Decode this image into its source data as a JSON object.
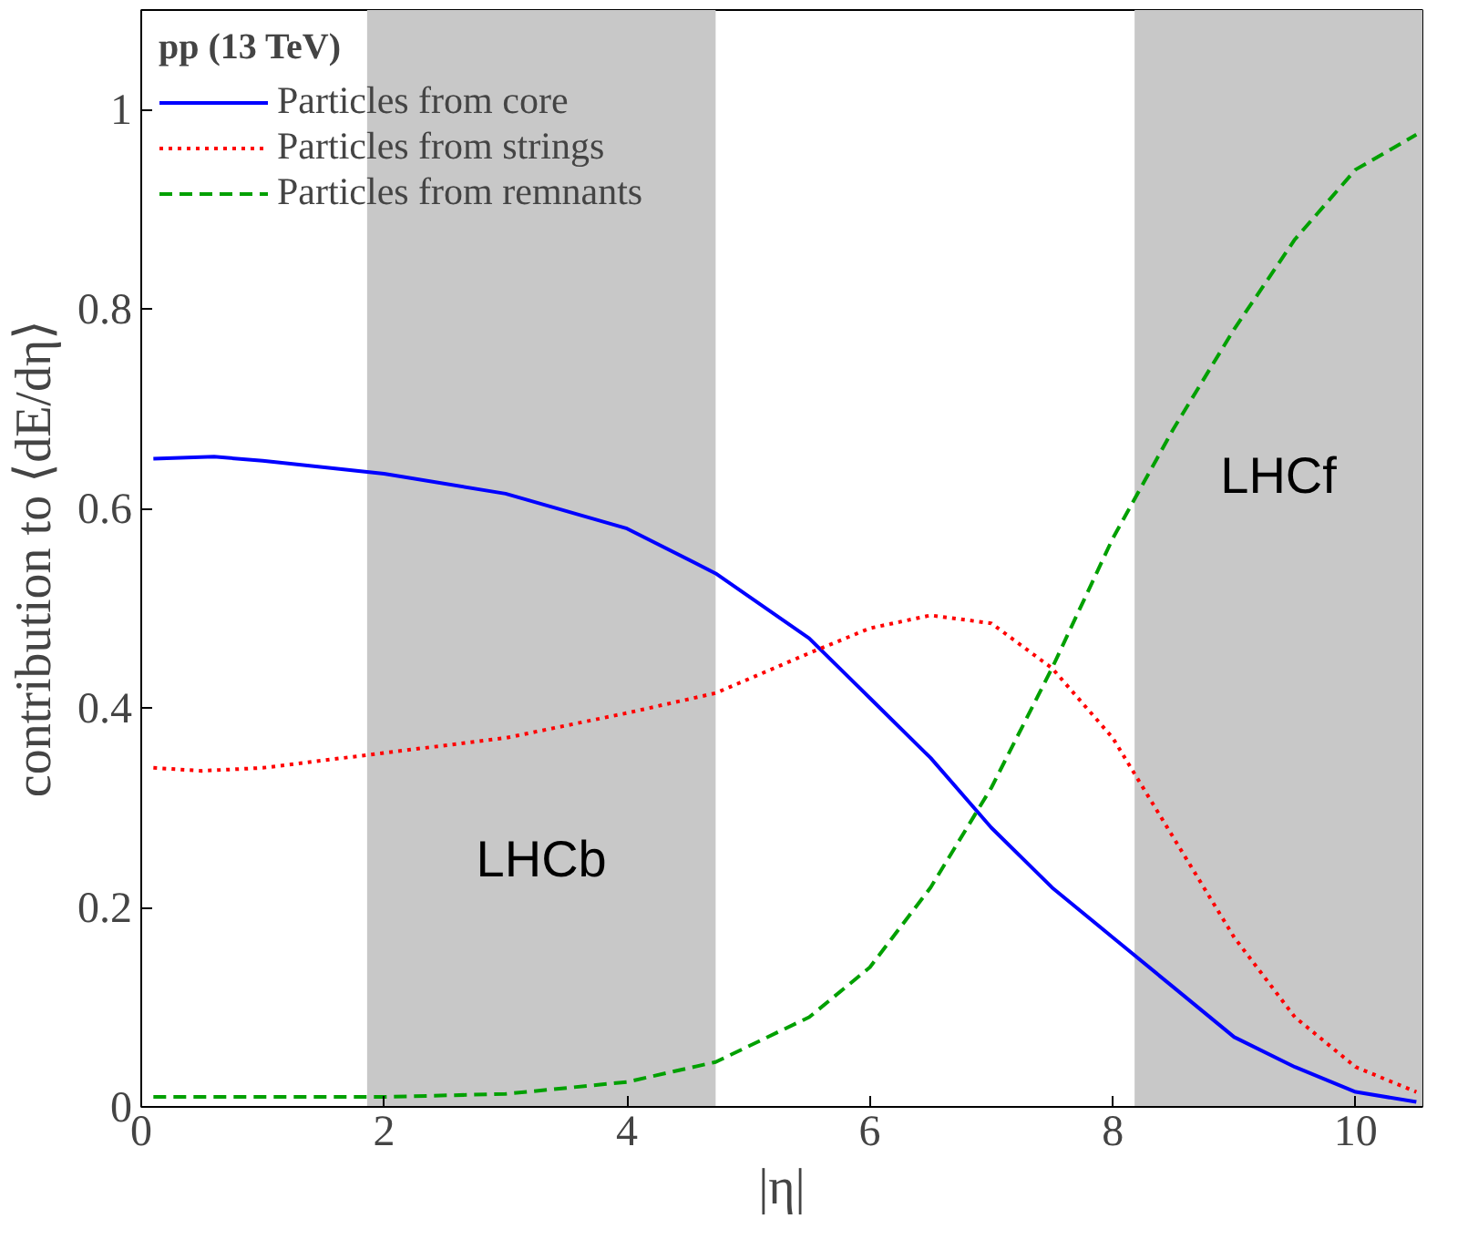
{
  "chart_data": {
    "type": "line",
    "xlabel": "|η|",
    "ylabel": "contribution to ⟨dE/dη⟩",
    "legend_title": "pp (13 TeV)",
    "legend": "top left",
    "grid": false,
    "xlim": [
      0,
      10.55
    ],
    "ylim": [
      0,
      1.1
    ],
    "xticks": [
      0,
      2,
      4,
      6,
      8,
      10
    ],
    "yticks": [
      0,
      0.2,
      0.4,
      0.6,
      0.8,
      1
    ],
    "bands": [
      {
        "axis": "x",
        "from": 1.86,
        "to": 4.73,
        "label": "LHCb",
        "color": "#c8c8c8"
      },
      {
        "axis": "x",
        "from": 8.18,
        "to": 10.55,
        "label": "LHCf",
        "color": "#c8c8c8"
      }
    ],
    "series": [
      {
        "name": "Particles from core",
        "color": "#0000ff",
        "line_style": "solid",
        "x": [
          0.1,
          0.6,
          1,
          2,
          3,
          4,
          4.73,
          5.5,
          6,
          6.5,
          7,
          7.5,
          8,
          8.5,
          9,
          9.5,
          10,
          10.5
        ],
        "values": [
          0.65,
          0.652,
          0.648,
          0.635,
          0.615,
          0.58,
          0.535,
          0.47,
          0.41,
          0.35,
          0.28,
          0.22,
          0.17,
          0.12,
          0.07,
          0.04,
          0.015,
          0.005
        ]
      },
      {
        "name": "Particles from strings",
        "color": "#ff0000",
        "line_style": "dotted",
        "x": [
          0.1,
          0.5,
          1,
          2,
          3,
          4,
          4.73,
          5.5,
          6,
          6.5,
          7,
          7.5,
          8,
          8.5,
          9,
          9.5,
          10,
          10.5
        ],
        "values": [
          0.34,
          0.337,
          0.34,
          0.355,
          0.37,
          0.395,
          0.415,
          0.455,
          0.48,
          0.493,
          0.485,
          0.44,
          0.37,
          0.27,
          0.17,
          0.09,
          0.04,
          0.015
        ]
      },
      {
        "name": "Particles from remnants",
        "color": "#00a000",
        "line_style": "dashed",
        "x": [
          0.1,
          2,
          3,
          4,
          4.73,
          5.5,
          6,
          6.5,
          7,
          7.5,
          8,
          8.5,
          9,
          9.5,
          10,
          10.5
        ],
        "values": [
          0.01,
          0.01,
          0.013,
          0.025,
          0.045,
          0.09,
          0.14,
          0.22,
          0.32,
          0.44,
          0.57,
          0.68,
          0.78,
          0.87,
          0.94,
          0.975
        ]
      }
    ]
  }
}
